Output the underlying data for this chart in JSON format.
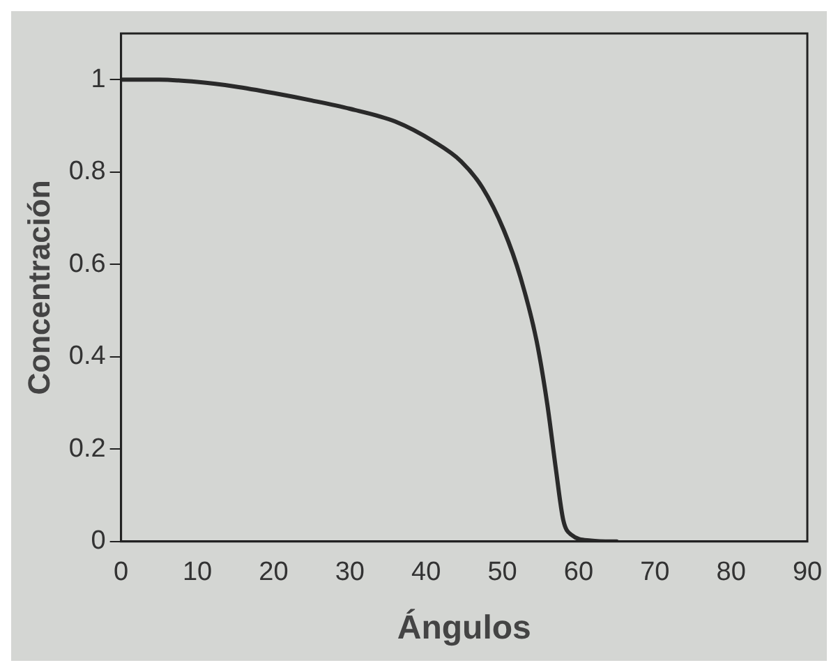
{
  "chart_data": {
    "type": "line",
    "xlabel": "Ángulos",
    "ylabel": "Concentración",
    "xlim": [
      0,
      90
    ],
    "ylim": [
      0,
      1.1
    ],
    "xticks": [
      0,
      10,
      20,
      30,
      40,
      50,
      60,
      70,
      80,
      90
    ],
    "yticks": [
      0,
      0.2,
      0.4,
      0.6,
      0.8,
      1
    ],
    "grid": false,
    "legend": false,
    "marker": "none",
    "line_style": "solid",
    "series": [
      {
        "color": "#2a2a2a",
        "x": [
          0,
          5,
          10,
          15,
          20,
          25,
          30,
          36,
          41,
          44.6,
          47.4,
          50.2,
          52.4,
          54.5,
          55.9,
          57,
          58,
          59.1,
          61.6,
          64.4,
          65
        ],
        "values": [
          1,
          1,
          0.995,
          0.985,
          0.971,
          0.955,
          0.937,
          0.909,
          0.866,
          0.823,
          0.766,
          0.674,
          0.571,
          0.434,
          0.297,
          0.16,
          0.046,
          0.014,
          0.002,
          0,
          0
        ]
      }
    ]
  }
}
